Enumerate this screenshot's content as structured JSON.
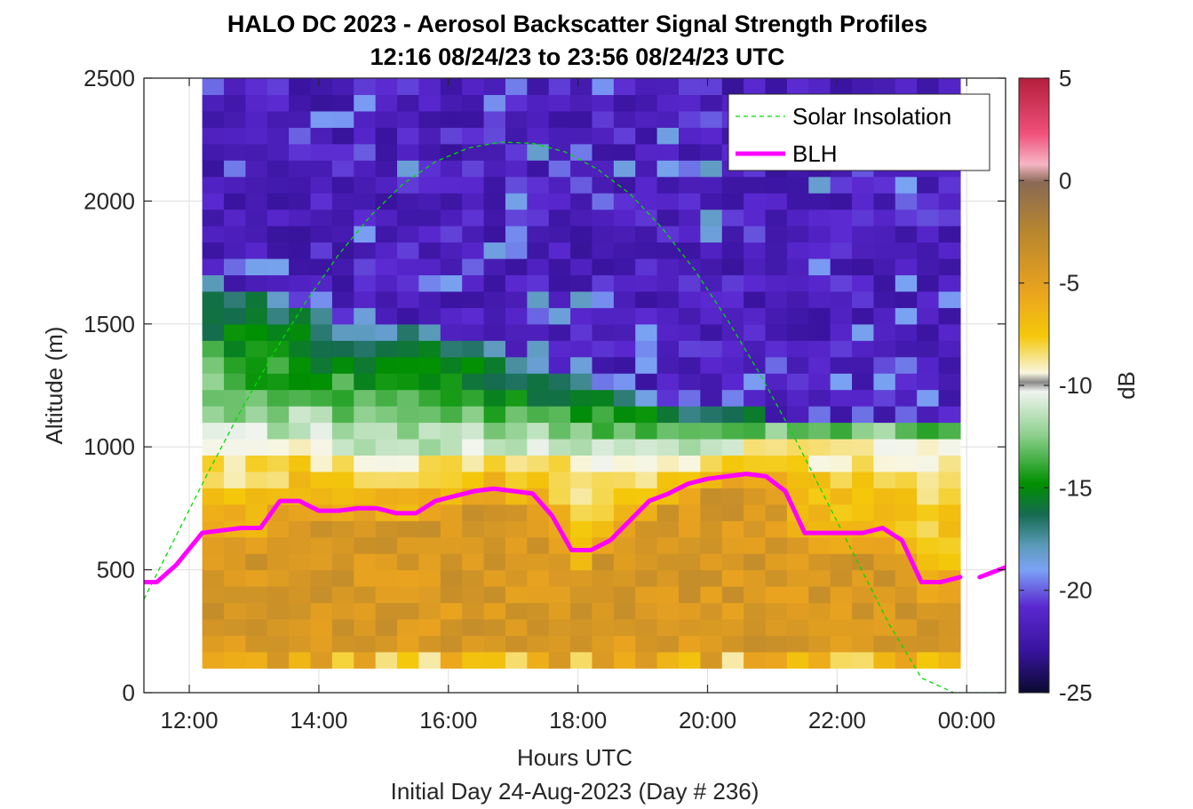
{
  "chart_data": {
    "type": "heatmap",
    "title": "HALO DC 2023 - Aerosol Backscatter Signal Strength Profiles",
    "subtitle": "12:16 08/24/23 to 23:56 08/24/23  UTC",
    "xlabel": "Hours UTC",
    "xlabel2": "Initial Day 24-Aug-2023 (Day # 236)",
    "ylabel": "Altitude (m)",
    "xlim": [
      11.3,
      24.6
    ],
    "ylim": [
      0,
      2500
    ],
    "x_ticks": [
      12,
      14,
      16,
      18,
      20,
      22,
      24
    ],
    "x_tick_labels": [
      "12:00",
      "14:00",
      "16:00",
      "18:00",
      "20:00",
      "22:00",
      "00:00"
    ],
    "y_ticks": [
      0,
      500,
      1000,
      1500,
      2000,
      2500
    ],
    "y_tick_labels": [
      "0",
      "500",
      "1000",
      "1500",
      "2000",
      "2500"
    ],
    "grid": true,
    "colorbar": {
      "label": "dB",
      "min": -25,
      "max": 5,
      "ticks": [
        5,
        0,
        -5,
        -10,
        -15,
        -20,
        -25
      ],
      "tick_labels": [
        "5",
        "0",
        "-5",
        "-10",
        "-15",
        "-20",
        "-25"
      ]
    },
    "heatmap": {
      "x_start": 12.2,
      "x_end": 23.9,
      "y_bottom": 100,
      "y_top": 2500,
      "columns": 35,
      "rows": 36,
      "cell_height_m": 66.67
    },
    "legend": {
      "placement": "top-right",
      "entries": [
        {
          "label": "Solar Insolation",
          "color": "#00dd00",
          "style": "dashed"
        },
        {
          "label": "BLH",
          "color": "#ff00ff",
          "style": "solid"
        }
      ]
    },
    "series": [
      {
        "name": "BLH",
        "color": "#ff00ff",
        "x": [
          11.3,
          11.5,
          11.8,
          12.2,
          12.5,
          12.8,
          13.1,
          13.4,
          13.7,
          14.0,
          14.3,
          14.6,
          14.9,
          15.2,
          15.5,
          15.8,
          16.1,
          16.4,
          16.7,
          17.0,
          17.3,
          17.6,
          17.9,
          18.2,
          18.5,
          18.8,
          19.1,
          19.4,
          19.7,
          20.0,
          20.3,
          20.6,
          20.9,
          21.2,
          21.5,
          21.8,
          22.1,
          22.4,
          22.7,
          23.0,
          23.3,
          23.6,
          23.9
        ],
        "y": [
          450,
          450,
          520,
          650,
          660,
          670,
          670,
          780,
          780,
          740,
          740,
          750,
          750,
          730,
          730,
          780,
          800,
          820,
          830,
          820,
          810,
          720,
          580,
          580,
          620,
          700,
          780,
          810,
          850,
          870,
          880,
          890,
          880,
          820,
          650,
          650,
          650,
          650,
          670,
          620,
          450,
          450,
          470
        ]
      },
      {
        "name": "BLH",
        "color": "#ff00ff",
        "x": [
          24.2,
          24.6
        ],
        "y": [
          470,
          510
        ]
      },
      {
        "name": "Solar Insolation",
        "color": "#00dd00",
        "x": [
          11.3,
          11.8,
          12.3,
          12.8,
          13.3,
          13.8,
          14.3,
          14.8,
          15.3,
          15.8,
          16.3,
          16.8,
          17.3,
          17.8,
          18.3,
          18.8,
          19.3,
          19.8,
          20.3,
          20.8,
          21.3,
          21.8,
          22.3,
          22.8,
          23.3,
          23.8,
          24.0,
          24.6
        ],
        "y": [
          380,
          640,
          900,
          1150,
          1380,
          1590,
          1780,
          1940,
          2070,
          2160,
          2215,
          2240,
          2235,
          2200,
          2130,
          2030,
          1890,
          1720,
          1520,
          1300,
          1060,
          800,
          540,
          280,
          60,
          0,
          0,
          0
        ]
      }
    ]
  }
}
